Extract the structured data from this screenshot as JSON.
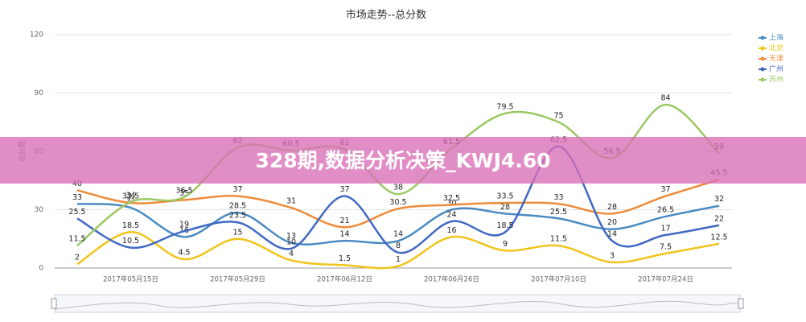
{
  "chart_data": {
    "type": "line",
    "title": "市场走势--总分数",
    "y_label": "总分数",
    "categories": [
      null,
      "2017年05月15日",
      null,
      "2017年05月29日",
      null,
      "2017年06月12日",
      null,
      "2017年06月26日",
      null,
      "2017年07月10日",
      null,
      "2017年07月24日",
      null
    ],
    "series": [
      {
        "name": "上海",
        "color": "#4a8bc2",
        "values": [
          33,
          31,
          16,
          28.5,
          13,
          14,
          14,
          30,
          28,
          25.5,
          20,
          26.5,
          32
        ]
      },
      {
        "name": "北京",
        "color": "#f0c419",
        "values": [
          2,
          18.5,
          4.5,
          15,
          4,
          1.5,
          1,
          16,
          9,
          11.5,
          3,
          7.5,
          12.5
        ]
      },
      {
        "name": "天津",
        "color": "#ed8c3b",
        "values": [
          40,
          33.5,
          35,
          37,
          31,
          21,
          30.5,
          32.5,
          33.5,
          33,
          28,
          37,
          45.5
        ]
      },
      {
        "name": "广州",
        "color": "#4169c4",
        "values": [
          25.5,
          10.5,
          19,
          23.5,
          10,
          37,
          8,
          24,
          18.5,
          62.5,
          14,
          17,
          22
        ]
      },
      {
        "name": "苏州",
        "color": "#9bc863",
        "values": [
          11.5,
          34,
          36.5,
          62,
          60.5,
          61,
          38,
          61.5,
          79.5,
          75,
          56.5,
          84,
          59
        ]
      }
    ],
    "ylim": [
      0,
      120
    ],
    "yticks": [
      0,
      30,
      60,
      90,
      120
    ],
    "grid": true
  },
  "banner": "328期,数据分析决策_KWJ4.60"
}
